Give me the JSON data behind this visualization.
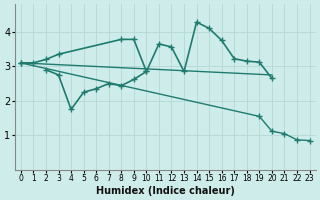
{
  "xlabel": "Humidex (Indice chaleur)",
  "bg_color": "#ceecea",
  "grid_color": "#b8dbd8",
  "line_color": "#1e7b6e",
  "xlim": [
    -0.5,
    23.5
  ],
  "ylim": [
    0,
    4.8
  ],
  "yticks": [
    1,
    2,
    3,
    4
  ],
  "xticks": [
    0,
    1,
    2,
    3,
    4,
    5,
    6,
    7,
    8,
    9,
    10,
    11,
    12,
    13,
    14,
    15,
    16,
    17,
    18,
    19,
    20,
    21,
    22,
    23
  ],
  "series": [
    {
      "x": [
        0,
        1,
        2,
        3,
        8,
        9,
        10,
        11,
        12,
        13,
        14,
        15,
        16,
        17,
        18,
        19,
        20
      ],
      "y": [
        3.1,
        3.1,
        3.2,
        3.35,
        3.78,
        3.78,
        2.85,
        3.65,
        3.56,
        2.85,
        4.28,
        4.1,
        3.75,
        3.22,
        3.15,
        3.12,
        2.65
      ],
      "marker": true
    },
    {
      "x": [
        2,
        3,
        4,
        5,
        6,
        7,
        8,
        9,
        10
      ],
      "y": [
        2.9,
        2.75,
        1.75,
        2.25,
        2.35,
        2.5,
        2.44,
        2.62,
        2.85
      ],
      "marker": true
    },
    {
      "x": [
        0,
        20
      ],
      "y": [
        3.1,
        2.75
      ],
      "marker": false
    },
    {
      "x": [
        0,
        19,
        20,
        21,
        22,
        23
      ],
      "y": [
        3.1,
        1.55,
        1.12,
        1.05,
        0.87,
        0.85
      ],
      "marker": true
    }
  ]
}
